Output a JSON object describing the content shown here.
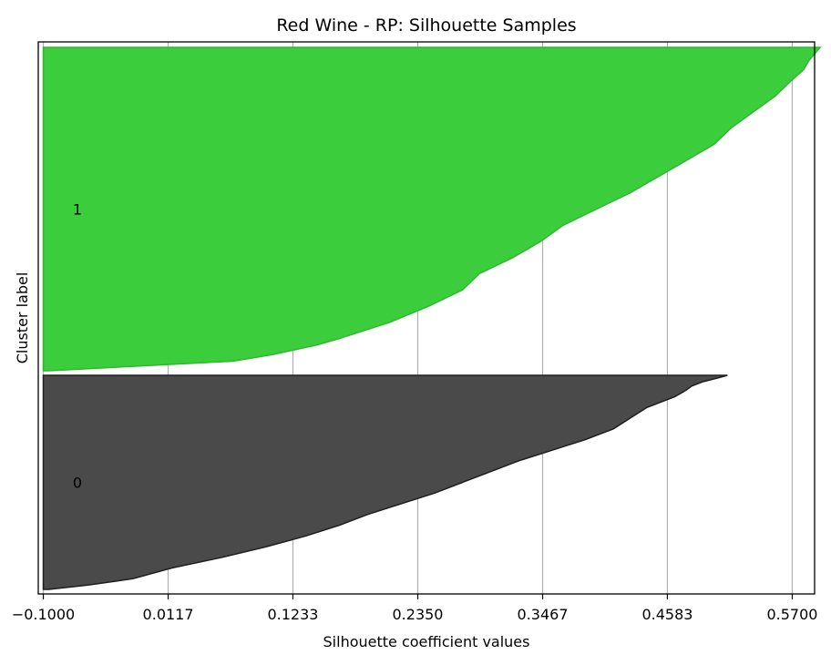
{
  "chart_data": {
    "type": "area",
    "title": "Red Wine - RP: Silhouette Samples",
    "xlabel": "Silhouette coefficient values",
    "ylabel": "Cluster label",
    "xlim": [
      -0.1045,
      0.59
    ],
    "x_ticks": [
      "-0.1000",
      "0.0117",
      "0.1233",
      "0.2350",
      "0.3467",
      "0.4583",
      "0.5700"
    ],
    "x_tick_values": [
      -0.1,
      0.0117,
      0.1233,
      0.235,
      0.3467,
      0.4583,
      0.57
    ],
    "grid": "vertical",
    "clusters": [
      {
        "label": "0",
        "color": "#4a4a4a",
        "edge_color": "#1f1f1f",
        "silhouette_profile": {
          "fraction_of_samples": [
            0.0,
            0.02,
            0.05,
            0.1,
            0.15,
            0.2,
            0.25,
            0.3,
            0.35,
            0.4,
            0.45,
            0.5,
            0.55,
            0.6,
            0.65,
            0.7,
            0.75,
            0.8,
            0.85,
            0.9,
            0.93,
            0.95,
            0.97,
            0.99,
            1.0
          ],
          "silhouette_value": [
            -0.095,
            -0.06,
            -0.02,
            0.015,
            0.06,
            0.1,
            0.135,
            0.165,
            0.19,
            0.22,
            0.25,
            0.275,
            0.3,
            0.325,
            0.355,
            0.385,
            0.41,
            0.425,
            0.44,
            0.465,
            0.475,
            0.48,
            0.49,
            0.505,
            0.512
          ]
        }
      },
      {
        "label": "1",
        "color": "#3ccd3c",
        "edge_color": "#2fb82f",
        "silhouette_profile": {
          "fraction_of_samples": [
            0.0,
            0.03,
            0.05,
            0.08,
            0.1,
            0.15,
            0.2,
            0.25,
            0.3,
            0.35,
            0.4,
            0.45,
            0.5,
            0.55,
            0.6,
            0.65,
            0.7,
            0.75,
            0.8,
            0.85,
            0.9,
            0.93,
            0.96,
            0.98,
            1.0
          ],
          "silhouette_value": [
            -0.095,
            0.07,
            0.105,
            0.145,
            0.165,
            0.21,
            0.245,
            0.275,
            0.29,
            0.32,
            0.345,
            0.365,
            0.395,
            0.425,
            0.45,
            0.475,
            0.5,
            0.515,
            0.535,
            0.555,
            0.57,
            0.58,
            0.585,
            0.59,
            0.595
          ]
        }
      }
    ]
  }
}
